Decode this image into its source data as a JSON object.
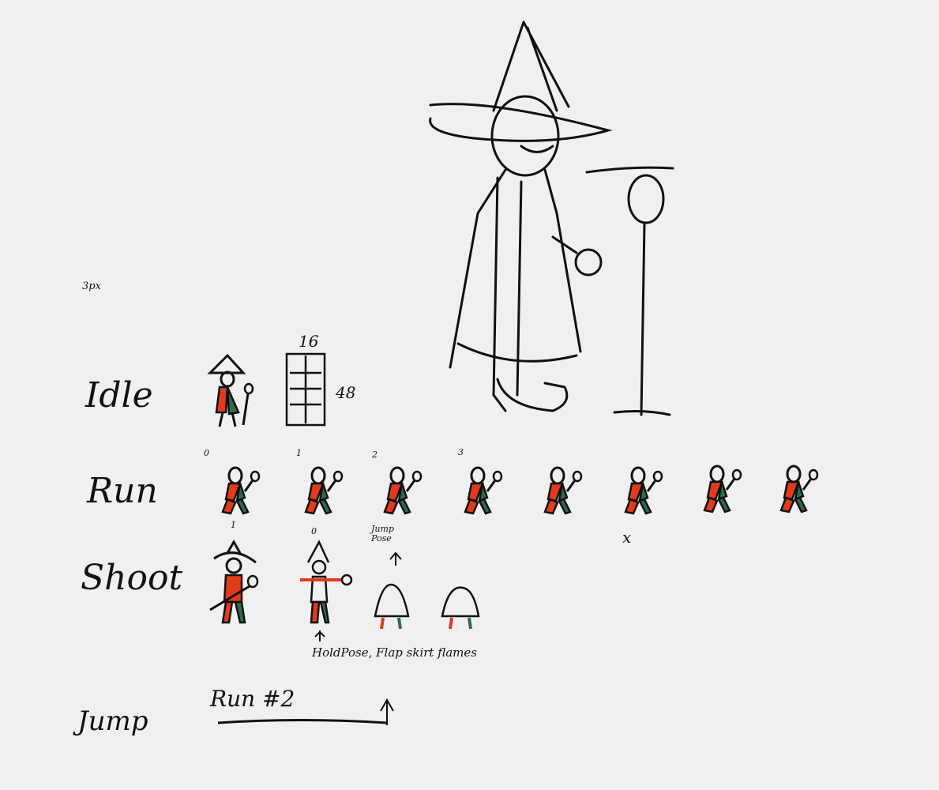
{
  "labels": {
    "three_px": "3px",
    "idle": "Idle",
    "run": "Run",
    "shoot": "Shoot",
    "jump": "Jump",
    "width": "16",
    "height": "48"
  },
  "run_frames": [
    "0",
    "1",
    "2",
    "3"
  ],
  "shoot_frames": [
    "1",
    "0"
  ],
  "notes": {
    "jump_pose": "Jump\nPose",
    "hold_pose": "HoldPose, Flap skirt flames",
    "run2": "Run #2",
    "cross": "x"
  },
  "colors": {
    "ink": "#111111",
    "red": "#e23b1a",
    "green": "#2f6b4a",
    "background": "#f0f0f0"
  }
}
